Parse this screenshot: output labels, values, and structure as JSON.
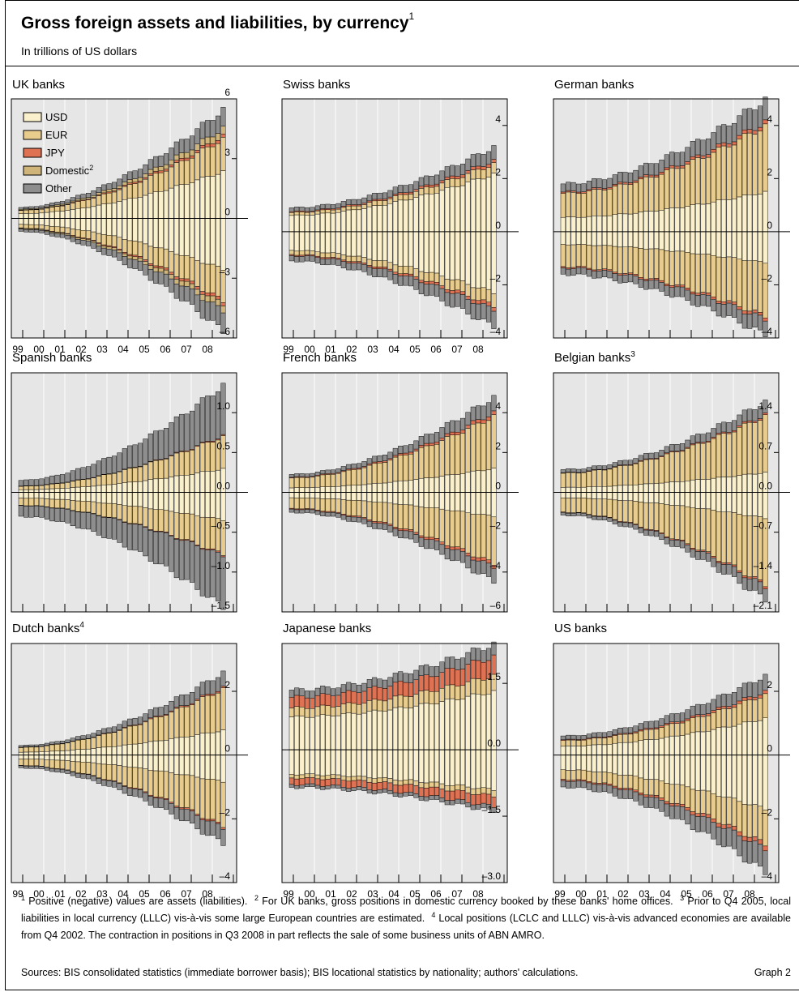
{
  "header": {
    "title": "Gross foreign assets and liabilities, by currency",
    "title_note": "1",
    "subtitle": "In trillions of US dollars"
  },
  "footnotes": [
    {
      "n": "1",
      "text": "Positive (negative) values are assets (liabilities)."
    },
    {
      "n": "2",
      "text": "For UK banks, gross positions in domestic currency booked by these banks' home offices."
    },
    {
      "n": "3",
      "text": "Prior to Q4 2005, local liabilities in local currency (LLLC) vis-à-vis some large European countries are estimated."
    },
    {
      "n": "4",
      "text": "Local positions (LCLC and LLLC) vis-à-vis advanced economies are available from Q4 2002. The contraction in positions in Q3 2008 in part reflects the sale of some business units of ABN AMRO."
    }
  ],
  "sources": "Sources: BIS consolidated statistics (immediate borrower basis); BIS locational statistics by nationality; authors' calculations.",
  "graph_label": "Graph 2",
  "colors": {
    "USD": "#faf0cc",
    "EUR": "#e8cc8e",
    "JPY": "#e07254",
    "Domestic": "#cfb57a",
    "Other": "#8e8e8e",
    "plot_bg": "#e6e6e6"
  },
  "chart_data": [
    {
      "type": "bar",
      "stacked": true,
      "title": "UK banks",
      "ylim": [
        -6,
        6
      ],
      "yticks": [
        {
          "v": 6,
          "label": "6"
        },
        {
          "v": 3,
          "label": "3"
        },
        {
          "v": 0,
          "label": "0"
        },
        {
          "v": -3,
          "label": "–3"
        },
        {
          "v": -6,
          "label": "–6"
        }
      ],
      "x_labels": [
        "99",
        "00",
        "01",
        "02",
        "03",
        "04",
        "05",
        "06",
        "07",
        "08"
      ],
      "legend": [
        {
          "key": "USD",
          "label": "USD"
        },
        {
          "key": "EUR",
          "label": "EUR"
        },
        {
          "key": "JPY",
          "label": "JPY"
        },
        {
          "key": "Domestic",
          "label": "Domestic",
          "note": "2"
        },
        {
          "key": "Other",
          "label": "Other"
        }
      ],
      "assets_total": [
        0.55,
        5.5
      ],
      "liabilities_total": [
        0.65,
        5.7
      ],
      "assets_shares": {
        "USD": 0.43,
        "EUR": 0.3,
        "JPY": 0.03,
        "Domestic": 0.07,
        "Other": 0.17
      },
      "liabilities_shares": {
        "USD": 0.45,
        "EUR": 0.28,
        "JPY": 0.03,
        "Domestic": 0.06,
        "Other": 0.18
      }
    },
    {
      "type": "bar",
      "stacked": true,
      "title": "Swiss banks",
      "ylim": [
        -4,
        5
      ],
      "yticks": [
        {
          "v": 4,
          "label": "4"
        },
        {
          "v": 2,
          "label": "2"
        },
        {
          "v": 0,
          "label": "0"
        },
        {
          "v": -2,
          "label": "–2"
        },
        {
          "v": -4,
          "label": "–4"
        }
      ],
      "x_labels": [
        "99",
        "00",
        "01",
        "02",
        "03",
        "04",
        "05",
        "06",
        "07",
        "08"
      ],
      "assets_total": [
        0.9,
        3.2
      ],
      "liabilities_total": [
        1.1,
        3.6
      ],
      "assets_shares": {
        "USD": 0.68,
        "EUR": 0.12,
        "JPY": 0.04,
        "Other": 0.16
      },
      "liabilities_shares": {
        "USD": 0.64,
        "EUR": 0.14,
        "JPY": 0.04,
        "Other": 0.18
      }
    },
    {
      "type": "bar",
      "stacked": true,
      "title": "German banks",
      "ylim": [
        -4,
        5
      ],
      "yticks": [
        {
          "v": 4,
          "label": "4"
        },
        {
          "v": 2,
          "label": "2"
        },
        {
          "v": 0,
          "label": "0"
        },
        {
          "v": -2,
          "label": "–2"
        },
        {
          "v": -4,
          "label": "–4"
        }
      ],
      "x_labels": [],
      "assets_total": [
        1.8,
        5.0
      ],
      "liabilities_total": [
        1.6,
        3.9
      ],
      "assets_shares": {
        "USD": 0.3,
        "EUR": 0.5,
        "JPY": 0.03,
        "Other": 0.17
      },
      "liabilities_shares": {
        "USD": 0.3,
        "EUR": 0.52,
        "JPY": 0.03,
        "Other": 0.15
      }
    },
    {
      "type": "bar",
      "stacked": true,
      "title": "Spanish banks",
      "ylim": [
        -1.5,
        1.5
      ],
      "yticks": [
        {
          "v": 1.0,
          "label": "1.0"
        },
        {
          "v": 0.5,
          "label": "0.5"
        },
        {
          "v": 0,
          "label": "0.0"
        },
        {
          "v": -0.5,
          "label": "–0.5"
        },
        {
          "v": -1.0,
          "label": "–1.0"
        },
        {
          "v": -1.5,
          "label": "–1.5"
        }
      ],
      "x_labels": [],
      "assets_total": [
        0.15,
        1.35
      ],
      "liabilities_total": [
        0.3,
        1.45
      ],
      "assets_shares": {
        "USD": 0.22,
        "EUR": 0.3,
        "JPY": 0.01,
        "Other": 0.47
      },
      "liabilities_shares": {
        "USD": 0.24,
        "EUR": 0.3,
        "JPY": 0.01,
        "Other": 0.45
      }
    },
    {
      "type": "bar",
      "stacked": true,
      "title": "French banks",
      "ylim": [
        -6,
        6
      ],
      "yticks": [
        {
          "v": 4,
          "label": "4"
        },
        {
          "v": 2,
          "label": "2"
        },
        {
          "v": 0,
          "label": "0"
        },
        {
          "v": -2,
          "label": "–2"
        },
        {
          "v": -4,
          "label": "–4"
        },
        {
          "v": -6,
          "label": "–6"
        }
      ],
      "x_labels": [],
      "assets_total": [
        0.9,
        4.8
      ],
      "liabilities_total": [
        1.0,
        4.5
      ],
      "assets_shares": {
        "USD": 0.25,
        "EUR": 0.55,
        "JPY": 0.04,
        "Other": 0.16
      },
      "liabilities_shares": {
        "USD": 0.27,
        "EUR": 0.53,
        "JPY": 0.04,
        "Other": 0.16
      }
    },
    {
      "type": "bar",
      "stacked": true,
      "title": "Belgian banks",
      "title_note": "3",
      "ylim": [
        -2.1,
        2.1
      ],
      "yticks": [
        {
          "v": 1.4,
          "label": "1.4"
        },
        {
          "v": 0.7,
          "label": "0.7"
        },
        {
          "v": 0,
          "label": "0.0"
        },
        {
          "v": -0.7,
          "label": "–0.7"
        },
        {
          "v": -1.4,
          "label": "–1.4"
        },
        {
          "v": -2.1,
          "label": "–2.1"
        }
      ],
      "x_labels": [],
      "assets_total": [
        0.4,
        1.6
      ],
      "liabilities_total": [
        0.4,
        1.9
      ],
      "assets_shares": {
        "USD": 0.22,
        "EUR": 0.62,
        "JPY": 0.02,
        "Other": 0.14
      },
      "liabilities_shares": {
        "USD": 0.24,
        "EUR": 0.62,
        "JPY": 0.02,
        "Other": 0.12
      }
    },
    {
      "type": "bar",
      "stacked": true,
      "title": "Dutch banks",
      "title_note": "4",
      "ylim": [
        -4,
        3.5
      ],
      "yticks": [
        {
          "v": 2,
          "label": "2"
        },
        {
          "v": 0,
          "label": "0"
        },
        {
          "v": -2,
          "label": "–2"
        },
        {
          "v": -4,
          "label": "–4"
        }
      ],
      "x_labels": [
        "99",
        "00",
        "01",
        "02",
        "03",
        "04",
        "05",
        "06",
        "07",
        "08"
      ],
      "assets_total": [
        0.3,
        2.6
      ],
      "liabilities_total": [
        0.4,
        2.8
      ],
      "assets_shares": {
        "USD": 0.3,
        "EUR": 0.5,
        "JPY": 0.02,
        "Other": 0.18
      },
      "liabilities_shares": {
        "USD": 0.3,
        "EUR": 0.5,
        "JPY": 0.02,
        "Other": 0.18
      }
    },
    {
      "type": "bar",
      "stacked": true,
      "title": "Japanese banks",
      "ylim": [
        -3.0,
        2.4
      ],
      "yticks": [
        {
          "v": 1.5,
          "label": "1.5"
        },
        {
          "v": 0,
          "label": "0.0"
        },
        {
          "v": -1.5,
          "label": "–1.5"
        },
        {
          "v": -3.0,
          "label": "–3.0"
        }
      ],
      "x_labels": [
        "99",
        "00",
        "01",
        "02",
        "03",
        "04",
        "05",
        "06",
        "07",
        "08"
      ],
      "assets_total": [
        1.35,
        2.4
      ],
      "liabilities_total": [
        0.85,
        1.4
      ],
      "assets_shares": {
        "USD": 0.55,
        "EUR": 0.15,
        "JPY": 0.18,
        "Other": 0.12
      },
      "liabilities_shares": {
        "USD": 0.65,
        "EUR": 0.1,
        "JPY": 0.17,
        "Other": 0.08
      }
    },
    {
      "type": "bar",
      "stacked": true,
      "title": "US banks",
      "ylim": [
        -4,
        3.5
      ],
      "yticks": [
        {
          "v": 2,
          "label": "2"
        },
        {
          "v": 0,
          "label": "0"
        },
        {
          "v": -2,
          "label": "–2"
        },
        {
          "v": -4,
          "label": "–4"
        }
      ],
      "x_labels": [
        "99",
        "00",
        "01",
        "02",
        "03",
        "04",
        "05",
        "06",
        "07",
        "08"
      ],
      "assets_total": [
        0.6,
        2.5
      ],
      "liabilities_total": [
        1.0,
        3.7
      ],
      "assets_shares": {
        "USD": 0.46,
        "EUR": 0.3,
        "JPY": 0.04,
        "Other": 0.2
      },
      "liabilities_shares": {
        "USD": 0.46,
        "EUR": 0.3,
        "JPY": 0.04,
        "Other": 0.2
      }
    }
  ]
}
